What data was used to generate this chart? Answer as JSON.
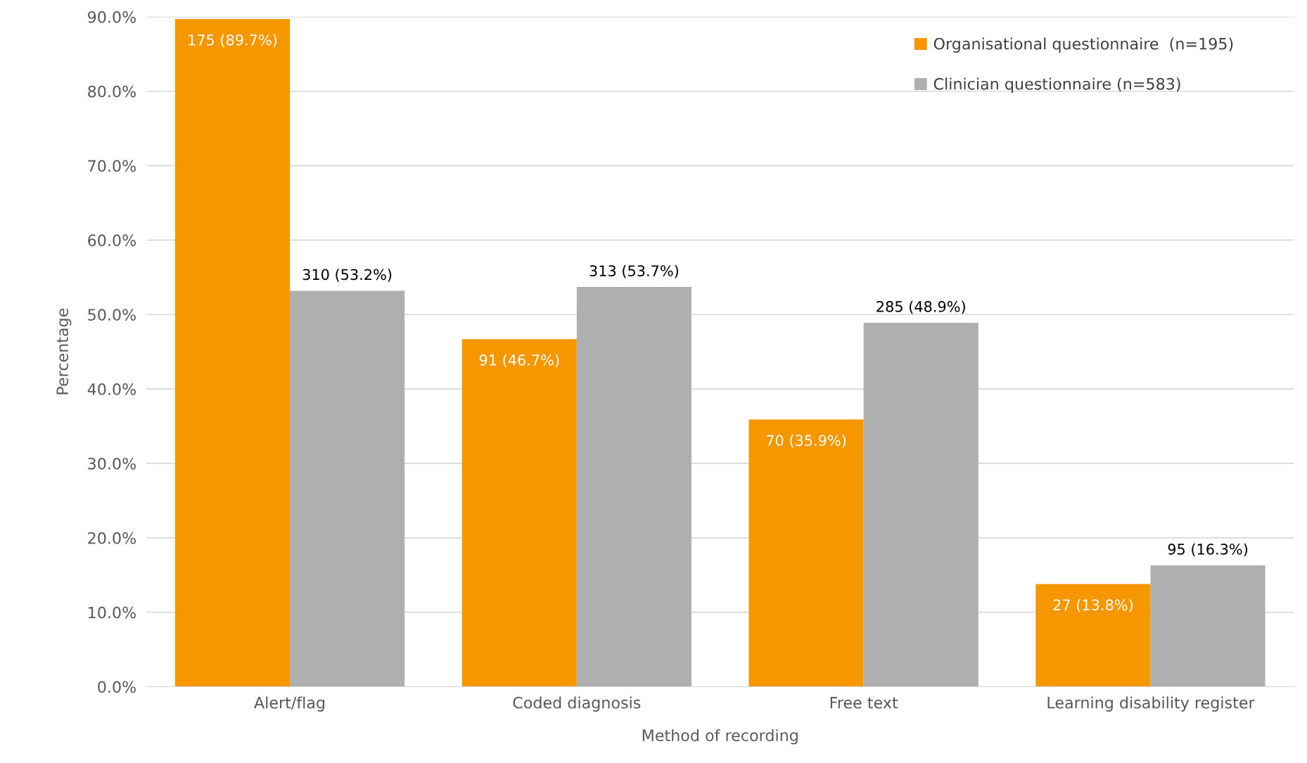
{
  "chart_data": {
    "type": "bar",
    "xlabel": "Method of recording",
    "ylabel": "Percentage",
    "categories": [
      "Alert/flag",
      "Coded diagnosis",
      "Free text",
      "Learning disability register"
    ],
    "series": [
      {
        "name": "Organisational questionnaire  (n=195)",
        "color": "#f79700",
        "values": [
          89.7,
          46.7,
          35.9,
          13.8
        ],
        "value_labels": [
          "175 (89.7%)",
          "91 (46.7%)",
          "70 (35.9%)",
          "27 (13.8%)"
        ]
      },
      {
        "name": "Clinician questionnaire (n=583)",
        "color": "#afafaf",
        "values": [
          53.2,
          53.7,
          48.9,
          16.3
        ],
        "value_labels": [
          "310 (53.2%)",
          "313 (53.7%)",
          "285 (48.9%)",
          "95 (16.3%)"
        ]
      }
    ],
    "ylim": [
      0,
      90
    ],
    "yticks": [
      {
        "value": 0,
        "label": "0.0%"
      },
      {
        "value": 10,
        "label": "10.0%"
      },
      {
        "value": 20,
        "label": "20.0%"
      },
      {
        "value": 30,
        "label": "30.0%"
      },
      {
        "value": 40,
        "label": "40.0%"
      },
      {
        "value": 50,
        "label": "50.0%"
      },
      {
        "value": 60,
        "label": "60.0%"
      },
      {
        "value": 70,
        "label": "70.0%"
      },
      {
        "value": 80,
        "label": "80.0%"
      },
      {
        "value": 90,
        "label": "90.0%"
      }
    ],
    "grid": "y",
    "legend": "top right"
  }
}
